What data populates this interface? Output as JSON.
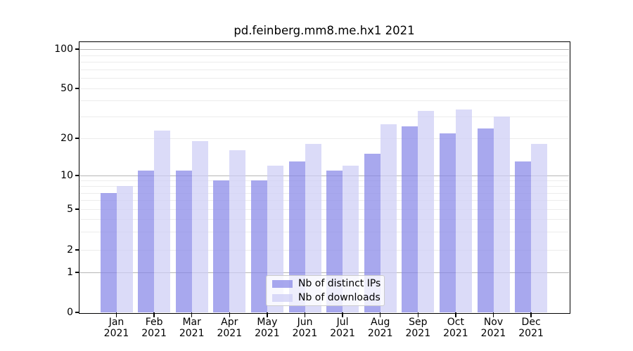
{
  "chart_data": {
    "type": "bar",
    "title": "pd.feinberg.mm8.me.hx1 2021",
    "months": [
      "Jan",
      "Feb",
      "Mar",
      "Apr",
      "May",
      "Jun",
      "Jul",
      "Aug",
      "Sep",
      "Oct",
      "Nov",
      "Dec"
    ],
    "year_label": "2021",
    "categories": [
      "Jan 2021",
      "Feb 2021",
      "Mar 2021",
      "Apr 2021",
      "May 2021",
      "Jun 2021",
      "Jul 2021",
      "Aug 2021",
      "Sep 2021",
      "Oct 2021",
      "Nov 2021",
      "Dec 2021"
    ],
    "series": [
      {
        "name": "Nb of distinct IPs",
        "color": "#8686e7",
        "values": [
          7,
          11,
          11,
          9,
          9,
          13,
          11,
          15,
          25,
          22,
          24,
          13
        ]
      },
      {
        "name": "Nb of downloads",
        "color": "#cdcdf5",
        "values": [
          8,
          23,
          19,
          16,
          12,
          18,
          12,
          26,
          33,
          34,
          30,
          18
        ]
      }
    ],
    "xlabel": "",
    "ylabel": "",
    "yscale": "log (with 0 baseline)",
    "ylim": [
      0,
      100
    ],
    "yticks": [
      0,
      1,
      2,
      5,
      10,
      20,
      50,
      100
    ],
    "major_gridlines": [
      1,
      10,
      100
    ],
    "minor_gridlines": [
      2,
      3,
      4,
      5,
      6,
      7,
      8,
      9,
      20,
      30,
      40,
      50,
      60,
      70,
      80,
      90
    ],
    "grid": true,
    "bar_alpha": 0.72,
    "legend_position": "lower center"
  },
  "colors": {
    "grid_major": "#b6b6b6",
    "grid_minor": "#ececec",
    "axis": "#000000",
    "legend_border": "#cccccc"
  }
}
